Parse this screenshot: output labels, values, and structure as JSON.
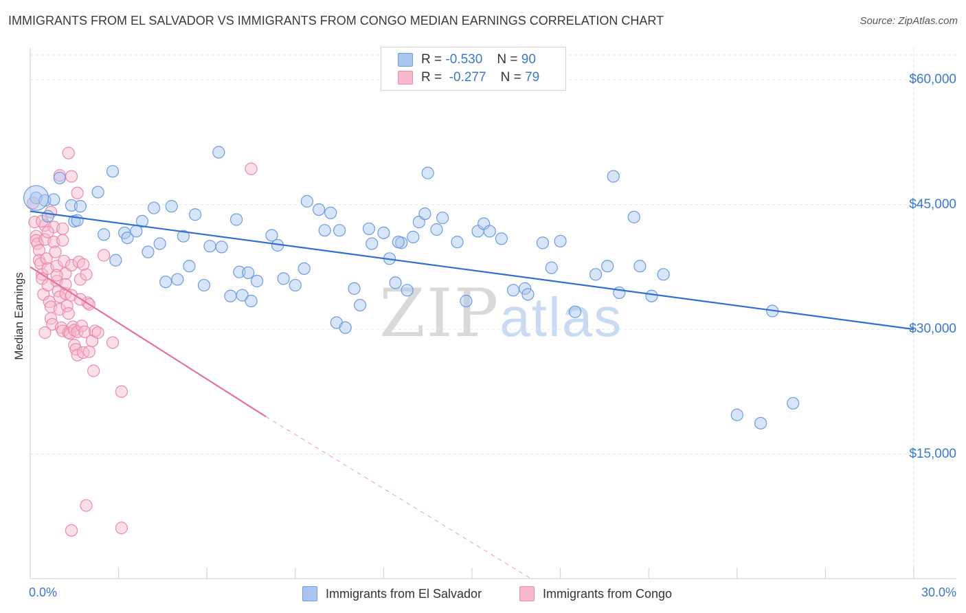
{
  "title": "IMMIGRANTS FROM EL SALVADOR VS IMMIGRANTS FROM CONGO MEDIAN EARNINGS CORRELATION CHART",
  "source": "Source: ZipAtlas.com",
  "watermark": {
    "zip": "ZIP",
    "atlas": "atlas"
  },
  "legend": {
    "rows": [
      {
        "r_label": "R =",
        "r_value": "-0.530",
        "n_label": "N =",
        "n_value": "90"
      },
      {
        "r_label": "R =",
        "r_value": "-0.277",
        "n_label": "N =",
        "n_value": "79"
      }
    ]
  },
  "colors": {
    "blue_fill": "#a9c6f0",
    "blue_stroke": "#6b9be0",
    "blue_line": "#2f6fd0",
    "pink_fill": "#f7b8cc",
    "pink_stroke": "#ec8aa9",
    "pink_line": "#e4709a",
    "grid": "#e3e3e3",
    "axis_text": "#3a78c9"
  },
  "chart_data": {
    "type": "scatter",
    "title": "IMMIGRANTS FROM EL SALVADOR VS IMMIGRANTS FROM CONGO MEDIAN EARNINGS CORRELATION CHART",
    "xlabel": "",
    "ylabel": "Median Earnings",
    "xlim": [
      0,
      30
    ],
    "ylim": [
      0,
      63000
    ],
    "x_tick_labels": [
      "0.0%",
      "30.0%"
    ],
    "y_ticks": [
      15000,
      30000,
      45000,
      60000
    ],
    "y_tick_labels": [
      "$15,000",
      "$30,000",
      "$45,000",
      "$60,000"
    ],
    "grid": true,
    "legend_position": "top-center",
    "series": [
      {
        "name": "Immigrants from El Salvador",
        "r": -0.53,
        "n": 90,
        "trend": {
          "x0": 0,
          "y0": 44200,
          "x1": 30,
          "y1": 30000
        },
        "points": [
          [
            0.2,
            45800
          ],
          [
            0.5,
            45500
          ],
          [
            0.6,
            43600
          ],
          [
            1.0,
            48200
          ],
          [
            1.4,
            44900
          ],
          [
            1.5,
            43000
          ],
          [
            1.7,
            44800
          ],
          [
            2.3,
            46500
          ],
          [
            2.5,
            41400
          ],
          [
            2.8,
            49000
          ],
          [
            2.9,
            38300
          ],
          [
            3.2,
            41600
          ],
          [
            3.3,
            41000
          ],
          [
            3.6,
            41800
          ],
          [
            3.8,
            43000
          ],
          [
            4.0,
            39300
          ],
          [
            4.2,
            44600
          ],
          [
            4.4,
            40300
          ],
          [
            4.6,
            35700
          ],
          [
            4.8,
            44800
          ],
          [
            5.0,
            36000
          ],
          [
            5.2,
            41200
          ],
          [
            5.4,
            37600
          ],
          [
            5.6,
            43800
          ],
          [
            5.9,
            35300
          ],
          [
            6.1,
            40000
          ],
          [
            6.4,
            51300
          ],
          [
            6.5,
            39900
          ],
          [
            6.8,
            34000
          ],
          [
            7.0,
            43200
          ],
          [
            7.1,
            36900
          ],
          [
            7.2,
            34100
          ],
          [
            7.4,
            36800
          ],
          [
            7.5,
            33400
          ],
          [
            7.7,
            35800
          ],
          [
            8.2,
            41300
          ],
          [
            8.4,
            40100
          ],
          [
            8.6,
            36100
          ],
          [
            9.0,
            35300
          ],
          [
            9.3,
            37300
          ],
          [
            9.4,
            45400
          ],
          [
            9.8,
            44400
          ],
          [
            10.0,
            41900
          ],
          [
            10.2,
            44000
          ],
          [
            10.4,
            30800
          ],
          [
            10.5,
            41900
          ],
          [
            10.7,
            30200
          ],
          [
            11.0,
            34900
          ],
          [
            11.2,
            32900
          ],
          [
            11.5,
            42100
          ],
          [
            11.6,
            40300
          ],
          [
            12.0,
            41600
          ],
          [
            12.2,
            38500
          ],
          [
            12.4,
            35600
          ],
          [
            12.6,
            40400
          ],
          [
            12.8,
            34700
          ],
          [
            13.0,
            41100
          ],
          [
            13.2,
            42900
          ],
          [
            13.4,
            43900
          ],
          [
            13.5,
            48800
          ],
          [
            13.8,
            42000
          ],
          [
            14.0,
            43400
          ],
          [
            14.5,
            40500
          ],
          [
            14.8,
            33400
          ],
          [
            15.2,
            41800
          ],
          [
            15.4,
            42700
          ],
          [
            15.6,
            41800
          ],
          [
            16.0,
            40900
          ],
          [
            16.4,
            34700
          ],
          [
            16.8,
            34900
          ],
          [
            16.9,
            34200
          ],
          [
            17.4,
            40400
          ],
          [
            17.7,
            37400
          ],
          [
            18.0,
            40600
          ],
          [
            18.5,
            32100
          ],
          [
            19.2,
            36600
          ],
          [
            19.6,
            37600
          ],
          [
            19.8,
            48400
          ],
          [
            20.0,
            34400
          ],
          [
            20.5,
            43500
          ],
          [
            20.7,
            37600
          ],
          [
            21.1,
            34000
          ],
          [
            21.5,
            36600
          ],
          [
            24.0,
            19700
          ],
          [
            24.8,
            18700
          ],
          [
            25.2,
            32200
          ],
          [
            25.9,
            21100
          ],
          [
            0.8,
            45600
          ],
          [
            1.6,
            43100
          ],
          [
            12.5,
            40500
          ]
        ]
      },
      {
        "name": "Immigrants from Congo",
        "r": -0.277,
        "n": 79,
        "trend": {
          "x0": 0,
          "y0": 37500,
          "x1": 8,
          "y1": 19500
        },
        "trend_dashed_to": {
          "x": 17.0,
          "y": 0
        },
        "points": [
          [
            0.1,
            45200
          ],
          [
            0.15,
            42900
          ],
          [
            0.2,
            41200
          ],
          [
            0.2,
            40700
          ],
          [
            0.25,
            40300
          ],
          [
            0.3,
            39500
          ],
          [
            0.3,
            38300
          ],
          [
            0.35,
            37900
          ],
          [
            0.4,
            36600
          ],
          [
            0.4,
            36100
          ],
          [
            0.45,
            34200
          ],
          [
            0.5,
            42500
          ],
          [
            0.5,
            40800
          ],
          [
            0.55,
            38500
          ],
          [
            0.6,
            37300
          ],
          [
            0.6,
            35300
          ],
          [
            0.65,
            33300
          ],
          [
            0.7,
            32700
          ],
          [
            0.7,
            31300
          ],
          [
            0.75,
            30600
          ],
          [
            0.8,
            42300
          ],
          [
            0.8,
            40500
          ],
          [
            0.85,
            39300
          ],
          [
            0.9,
            37600
          ],
          [
            0.9,
            35800
          ],
          [
            0.95,
            34600
          ],
          [
            1.0,
            33900
          ],
          [
            1.0,
            32400
          ],
          [
            1.05,
            30200
          ],
          [
            1.1,
            29800
          ],
          [
            1.1,
            40700
          ],
          [
            1.15,
            38200
          ],
          [
            1.2,
            36700
          ],
          [
            1.2,
            34300
          ],
          [
            1.25,
            32800
          ],
          [
            1.3,
            31900
          ],
          [
            1.3,
            29600
          ],
          [
            1.35,
            29500
          ],
          [
            1.4,
            37700
          ],
          [
            1.4,
            34100
          ],
          [
            1.45,
            30300
          ],
          [
            1.5,
            29900
          ],
          [
            1.5,
            28100
          ],
          [
            1.55,
            27600
          ],
          [
            1.6,
            29700
          ],
          [
            1.6,
            26900
          ],
          [
            1.65,
            38100
          ],
          [
            1.7,
            36000
          ],
          [
            1.75,
            30400
          ],
          [
            1.8,
            27200
          ],
          [
            1.85,
            29700
          ],
          [
            1.9,
            36600
          ],
          [
            1.95,
            33200
          ],
          [
            2.0,
            27300
          ],
          [
            2.1,
            28600
          ],
          [
            2.15,
            25000
          ],
          [
            2.2,
            29800
          ],
          [
            2.3,
            29600
          ],
          [
            2.5,
            38900
          ],
          [
            2.8,
            28400
          ],
          [
            3.1,
            22500
          ],
          [
            7.5,
            49300
          ],
          [
            1.3,
            51200
          ],
          [
            1.0,
            48500
          ],
          [
            1.4,
            48400
          ],
          [
            1.6,
            46400
          ],
          [
            1.9,
            8800
          ],
          [
            1.4,
            5800
          ],
          [
            3.1,
            6100
          ],
          [
            0.4,
            43000
          ],
          [
            0.7,
            44100
          ],
          [
            1.1,
            42100
          ],
          [
            0.6,
            41700
          ],
          [
            0.9,
            36500
          ],
          [
            1.2,
            35400
          ],
          [
            1.8,
            37800
          ],
          [
            2.0,
            33000
          ],
          [
            0.5,
            29600
          ],
          [
            1.7,
            33600
          ]
        ]
      }
    ]
  }
}
